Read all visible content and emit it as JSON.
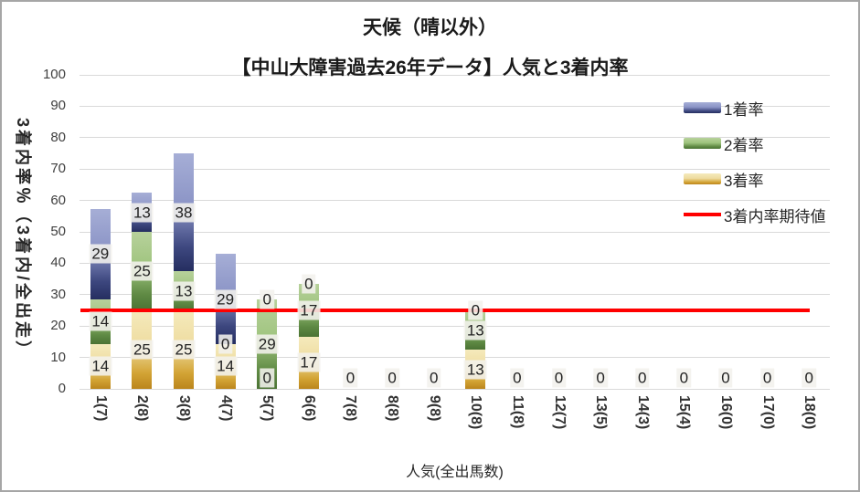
{
  "chart": {
    "title_line1": "天候（晴以外）",
    "title_line2": "【中山大障害過去26年データ】人気と3着内率",
    "y_axis_title": "3着内率％（3着内/全出走）",
    "x_axis_title": "人気(全出馬数)"
  },
  "legend": {
    "position": "top-right",
    "items": [
      {
        "label": "1着率",
        "type": "bar",
        "series": "1着率"
      },
      {
        "label": "2着率",
        "type": "bar",
        "series": "2着率"
      },
      {
        "label": "3着率",
        "type": "bar",
        "series": "3着率"
      },
      {
        "label": "3着内率期待値",
        "type": "line",
        "color": "#ff0000"
      }
    ]
  },
  "chart_data": {
    "type": "bar",
    "stacked": true,
    "stack_order": "bottom-to-top",
    "title": "天候（晴以外）【中山大障害過去26年データ】人気と3着内率",
    "xlabel": "人気(全出馬数)",
    "ylabel": "3着内率％（3着内/全出走）",
    "ylim": [
      0,
      100
    ],
    "ytick_step": 10,
    "yticks": [
      "0",
      "10",
      "20",
      "30",
      "40",
      "50",
      "60",
      "70",
      "80",
      "90",
      "100"
    ],
    "grid": true,
    "categories": [
      "1(7)",
      "2(8)",
      "3(8)",
      "4(7)",
      "5(7)",
      "6(6)",
      "7(8)",
      "8(8)",
      "9(8)",
      "10(8)",
      "11(8)",
      "12(7)",
      "13(5)",
      "14(3)",
      "15(4)",
      "16(0)",
      "17(0)",
      "18(0)"
    ],
    "series": [
      {
        "name": "3着率",
        "values": [
          14.3,
          25,
          25,
          14.3,
          0,
          16.7,
          0,
          0,
          0,
          12.5,
          0,
          0,
          0,
          0,
          0,
          0,
          0,
          0
        ],
        "labels": [
          "14",
          "25",
          "25",
          "14",
          "0",
          "17",
          "0",
          "0",
          "0",
          "13",
          "0",
          "0",
          "0",
          "0",
          "0",
          "0",
          "0",
          "0"
        ],
        "gradient": [
          "#f5eabc",
          "#eedca0",
          "#d3a435",
          "#bb851c"
        ]
      },
      {
        "name": "2着率",
        "values": [
          14.3,
          25,
          12.5,
          0,
          28.6,
          16.7,
          0,
          0,
          0,
          12.5,
          0,
          0,
          0,
          0,
          0,
          0,
          0,
          0
        ],
        "labels": [
          "14",
          "25",
          "13",
          "0",
          "29",
          "17",
          "0",
          "0",
          "0",
          "13",
          "0",
          "0",
          "0",
          "0",
          "0",
          "0",
          "0",
          "0"
        ],
        "gradient": [
          "#b7d19b",
          "#9fc47e",
          "#5f8a44",
          "#4b7334"
        ]
      },
      {
        "name": "1着率",
        "values": [
          28.6,
          12.5,
          37.5,
          28.6,
          0,
          0,
          0,
          0,
          0,
          0,
          0,
          0,
          0,
          0,
          0,
          0,
          0,
          0
        ],
        "labels": [
          "29",
          "13",
          "38",
          "29",
          "0",
          "0",
          "0",
          "0",
          "0",
          "0",
          "0",
          "0",
          "0",
          "0",
          "0",
          "0",
          "0",
          "0"
        ],
        "gradient": [
          "#a6aed6",
          "#8b94c6",
          "#3d477f",
          "#252e60"
        ]
      }
    ],
    "zero_total_label": "0",
    "reference_line": {
      "name": "3着内率期待値",
      "value": 25,
      "color": "#ff0000"
    }
  }
}
